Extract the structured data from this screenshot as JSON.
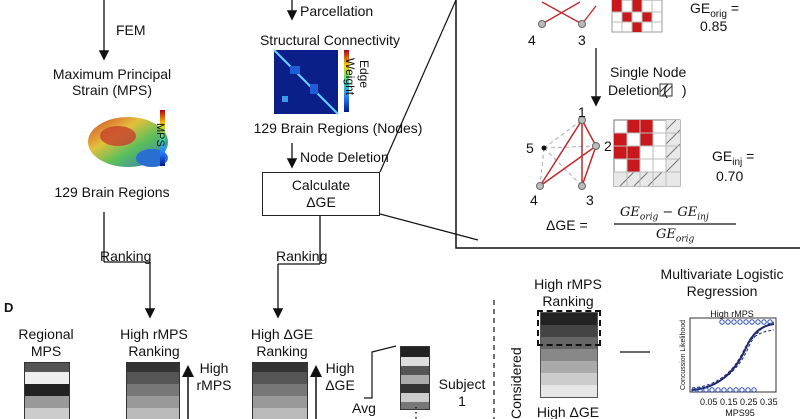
{
  "left_col": {
    "fem": "FEM",
    "mps_title_1": "Maximum Principal",
    "mps_title_2": "Strain (MPS)",
    "mps_colorbar": "MPS",
    "regions": "129 Brain Regions",
    "ranking": "Ranking"
  },
  "mid_col": {
    "parcellation": "Parcellation",
    "sc_title": "Structural Connectivity",
    "edge": "Edge",
    "weight": "Weight",
    "nodes": "129 Brain Regions (Nodes)",
    "node_deletion": "Node Deletion",
    "calc_1": "Calculate",
    "calc_2": "ΔGE",
    "ranking": "Ranking"
  },
  "inset": {
    "ge_orig_label": "GE",
    "ge_orig_sub": "orig",
    "ge_orig_eq": "=",
    "ge_orig_value": "0.85",
    "single_1": "Single Node",
    "single_2": "Deletion (",
    "single_3": ")",
    "ge_inj_label": "GE",
    "ge_inj_sub": "inj",
    "ge_inj_eq": "=",
    "ge_inj_value": "0.70",
    "node_1": "1",
    "node_2": "2",
    "node_3": "3",
    "node_4": "4",
    "node_5": "5",
    "node_top_4": "4",
    "node_top_3": "3",
    "formula_lhs": "ΔGE =",
    "formula_num": "GE",
    "formula_num_sub1": "orig",
    "formula_minus": " − GE",
    "formula_num_sub2": "inj",
    "formula_den": "GE",
    "formula_den_sub": "orig"
  },
  "panel_d": {
    "label": "D",
    "regional_1": "Regional",
    "regional_2": "MPS",
    "high_rmps_rank_1": "High rMPS",
    "high_rmps_rank_2": "Ranking",
    "high_rmps_arrow_1": "High",
    "high_rmps_arrow_2": "rMPS",
    "high_dge_rank_1": "High ΔGE",
    "high_dge_rank_2": "Ranking",
    "high_dge_arrow_1": "High",
    "high_dge_arrow_2": "ΔGE",
    "avg": "Avg",
    "subject_1": "Subject",
    "subject_2": "1",
    "ellipsis": "⋮",
    "considered": "Considered",
    "right_rank_1": "High rMPS",
    "right_rank_2": "Ranking",
    "right_bottom": "High ΔGE",
    "regression_1": "Multivariate Logistic",
    "regression_2": "Regression"
  },
  "plot": {
    "title": "High rMPS",
    "ylabel": "Concussion Likelihood",
    "xlabel": "MPS95",
    "xticks": "0.05 0.15 0.25 0.35"
  }
}
